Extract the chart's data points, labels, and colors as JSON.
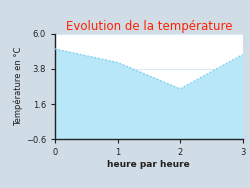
{
  "title": "Evolution de la température",
  "title_color": "#ff2200",
  "xlabel": "heure par heure",
  "ylabel": "Température en °C",
  "x": [
    0,
    1,
    2,
    3
  ],
  "y": [
    5.05,
    4.2,
    2.55,
    4.7
  ],
  "ylim": [
    -0.6,
    6.0
  ],
  "xlim": [
    0,
    3
  ],
  "yticks": [
    -0.6,
    1.6,
    3.8,
    6.0
  ],
  "xticks": [
    0,
    1,
    2,
    3
  ],
  "line_color": "#70ccee",
  "fill_color": "#b8e8f8",
  "fig_bg_color": "#d0dce6",
  "plot_bg_color": "#ffffff",
  "grid_color": "#d8eaf4",
  "title_fontsize": 8.5,
  "label_fontsize": 6.5,
  "tick_fontsize": 6.0
}
